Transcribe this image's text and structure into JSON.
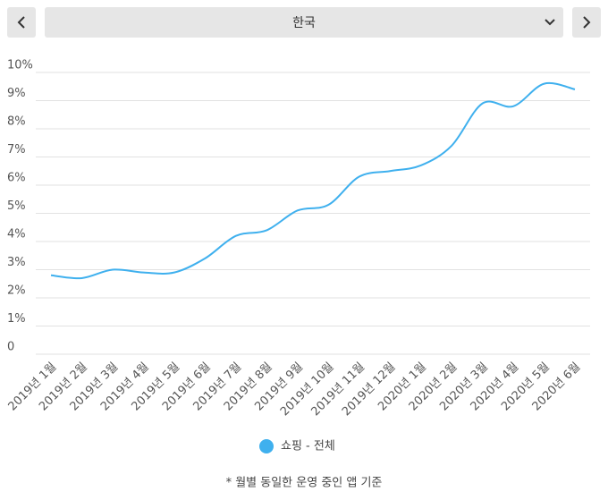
{
  "selector": {
    "value": "한국"
  },
  "chart_data": {
    "type": "line",
    "categories": [
      "2019년 1월",
      "2019년 2월",
      "2019년 3월",
      "2019년 4월",
      "2019년 5월",
      "2019년 6월",
      "2019년 7월",
      "2019년 8월",
      "2019년 9월",
      "2019년 10월",
      "2019년 11월",
      "2019년 12월",
      "2020년 1월",
      "2020년 2월",
      "2020년 3월",
      "2020년 4월",
      "2020년 5월",
      "2020년 6월"
    ],
    "series": [
      {
        "name": "쇼핑 - 전체",
        "color": "#3fb0ee",
        "values": [
          2.8,
          2.7,
          3.0,
          2.9,
          2.9,
          3.4,
          4.2,
          4.4,
          5.1,
          5.3,
          6.3,
          6.5,
          6.7,
          7.4,
          8.9,
          8.8,
          9.6,
          9.4
        ]
      }
    ],
    "ylim": [
      0,
      10
    ],
    "yticks": [
      0,
      {
        "value": 1,
        "label": "1%"
      },
      {
        "value": 2,
        "label": "2%"
      },
      {
        "value": 3,
        "label": "3%"
      },
      {
        "value": 4,
        "label": "4%"
      },
      {
        "value": 5,
        "label": "5%"
      },
      {
        "value": 6,
        "label": "6%"
      },
      {
        "value": 7,
        "label": "7%"
      },
      {
        "value": 8,
        "label": "8%"
      },
      {
        "value": 9,
        "label": "9%"
      },
      {
        "value": 10,
        "label": "10%"
      }
    ],
    "grid": true,
    "legend": "bottom"
  },
  "footnote": "* 월별 동일한 운영 중인 앱 기준"
}
